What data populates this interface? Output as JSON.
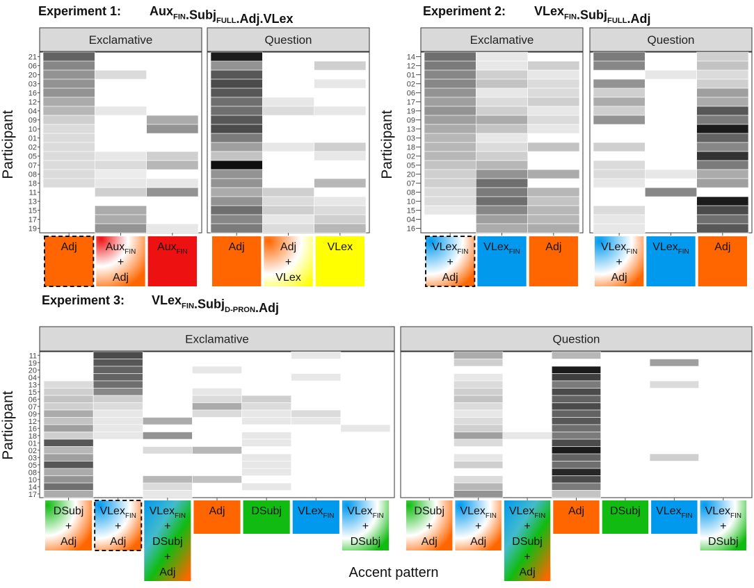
{
  "figure": {
    "y_axis_label": "Participant",
    "x_axis_label": "Accent pattern"
  },
  "colors": {
    "adj": "#ff6600",
    "aux": "#ee1111",
    "vlex": "#ffff00",
    "vlexfin": "#0099ee",
    "dsubj": "#11bb11",
    "strip_bg": "#d9d9d9",
    "white": "#ffffff"
  },
  "chart_data": [
    {
      "type": "heatmap",
      "title": {
        "prefix": "Experiment 1:",
        "formula": "Aux_FIN.Subj_FULL.Adj.VLex"
      },
      "ylabel": "Participant",
      "xlabel": "Accent pattern",
      "value_scale": "proportion 0–1 (white = 0, black = 1)",
      "participants": [
        "21",
        "06",
        "20",
        "03",
        "16",
        "12",
        "04",
        "09",
        "10",
        "01",
        "02",
        "05",
        "07",
        "08",
        "18",
        "11",
        "13",
        "15",
        "17",
        "19"
      ],
      "panels": [
        {
          "facet": "Exclamative",
          "patterns": [
            {
              "text": "Adj",
              "boxed": true,
              "fill": "adj",
              "values": [
                0.65,
                0.5,
                0.45,
                0.45,
                0.45,
                0.35,
                0.3,
                0.2,
                0.15,
                0.15,
                0.15,
                0.15,
                0.15,
                0.15,
                0.15,
                0,
                0,
                0,
                0,
                0
              ]
            },
            {
              "text": "Aux_FIN + Adj",
              "fill": "aux-adj",
              "values": [
                0,
                0,
                0.15,
                0,
                0,
                0,
                0.1,
                0,
                0,
                0,
                0,
                0.1,
                0.15,
                0.08,
                0.1,
                0.2,
                0,
                0.35,
                0.35,
                0.45
              ]
            },
            {
              "text": "Aux_FIN",
              "fill": "aux",
              "values": [
                0,
                0,
                0,
                0,
                0,
                0,
                0,
                0.35,
                0.45,
                0,
                0,
                0.2,
                0.3,
                0,
                0.1,
                0.45,
                0,
                0,
                0,
                0.1
              ]
            }
          ]
        },
        {
          "facet": "Question",
          "patterns": [
            {
              "text": "Adj",
              "fill": "adj",
              "values": [
                0.95,
                0.45,
                0.7,
                0.75,
                0.7,
                0.6,
                0.6,
                0.7,
                0.75,
                0.55,
                0.4,
                0.25,
                1.0,
                0.45,
                0.45,
                0.35,
                0.45,
                0.6,
                0.5,
                0.55
              ]
            },
            {
              "text": "Adj + VLex",
              "fill": "adj-vlex",
              "values": [
                0,
                0,
                0,
                0,
                0,
                0.1,
                0.15,
                0,
                0,
                0,
                0.1,
                0,
                0,
                0,
                0,
                0.2,
                0.15,
                0.2,
                0.1,
                0.15
              ]
            },
            {
              "text": "VLex",
              "fill": "vlex",
              "values": [
                0,
                0.2,
                0,
                0.1,
                0,
                0,
                0.1,
                0,
                0,
                0,
                0.2,
                0.1,
                0,
                0,
                0.3,
                0,
                0.1,
                0.15,
                0.2,
                0.3
              ]
            }
          ]
        }
      ]
    },
    {
      "type": "heatmap",
      "title": {
        "prefix": "Experiment 2:",
        "formula": "VLex_FIN.Subj_FULL.Adj"
      },
      "ylabel": "Participant",
      "xlabel": "Accent pattern",
      "value_scale": "proportion 0–1 (white = 0, black = 1)",
      "participants": [
        "14",
        "12",
        "01",
        "02",
        "06",
        "17",
        "19",
        "09",
        "13",
        "03",
        "18",
        "02",
        "05",
        "20",
        "07",
        "08",
        "10",
        "15",
        "04",
        "16"
      ],
      "panels": [
        {
          "facet": "Exclamative",
          "patterns": [
            {
              "text": "VLex_FIN + Adj",
              "boxed": true,
              "fill": "vlexfin-adj",
              "values": [
                0.6,
                0.55,
                0.5,
                0.5,
                0.45,
                0.4,
                0.45,
                0.4,
                0.35,
                0.3,
                0.3,
                0.3,
                0.25,
                0.2,
                0.2,
                0.15,
                0.15,
                0.1,
                0,
                0
              ]
            },
            {
              "text": "VLex_FIN",
              "fill": "vlexfin",
              "values": [
                0.1,
                0.1,
                0.2,
                0.25,
                0.1,
                0.15,
                0.2,
                0.35,
                0.25,
                0.1,
                0.15,
                0.2,
                0.3,
                0.45,
                0.6,
                0.55,
                0.6,
                0.5,
                0.4,
                0.35
              ]
            },
            {
              "text": "Adj",
              "fill": "adj",
              "values": [
                0,
                0.2,
                0.1,
                0.15,
                0.15,
                0.2,
                0.1,
                0.15,
                0.1,
                0,
                0.25,
                0,
                0,
                0.35,
                0,
                0.3,
                0.25,
                0.3,
                0.3,
                0.35
              ]
            }
          ]
        },
        {
          "facet": "Question",
          "patterns": [
            {
              "text": "VLex_FIN + Adj",
              "fill": "vlexfin-adj",
              "values": [
                0.55,
                0.5,
                0,
                0.45,
                0.2,
                0.35,
                0.2,
                0.45,
                0,
                0,
                0.2,
                0,
                0.15,
                0.15,
                0.1,
                0,
                0,
                0.15,
                0.1,
                0.1
              ]
            },
            {
              "text": "VLex_FIN",
              "fill": "vlexfin",
              "values": [
                0,
                0,
                0.1,
                0,
                0,
                0,
                0,
                0,
                0,
                0,
                0,
                0,
                0,
                0.1,
                0,
                0.5,
                0,
                0,
                0,
                0
              ]
            },
            {
              "text": "Adj",
              "fill": "adj",
              "values": [
                0.2,
                0.25,
                0.15,
                0.2,
                0.4,
                0.35,
                0.7,
                0.55,
                0.95,
                0.65,
                0.5,
                0.85,
                0.55,
                0.35,
                0.4,
                0,
                0.95,
                0.75,
                0.6,
                0.7
              ]
            }
          ]
        }
      ]
    },
    {
      "type": "heatmap",
      "title": {
        "prefix": "Experiment 3:",
        "formula": "VLex_FIN.Subj_D-PRON.Adj"
      },
      "ylabel": "Participant",
      "xlabel": "Accent pattern",
      "value_scale": "proportion 0–1 (white = 0, black = 1)",
      "participants": [
        "11",
        "19",
        "20",
        "04",
        "13",
        "15",
        "06",
        "07",
        "09",
        "12",
        "16",
        "18",
        "01",
        "02",
        "03",
        "05",
        "08",
        "10",
        "14",
        "17"
      ],
      "panels": [
        {
          "facet": "Exclamative",
          "patterns": [
            {
              "text": "DSubj + Adj",
              "fill": "dsubj-adj",
              "values": [
                0,
                0,
                0,
                0,
                0.15,
                0.2,
                0.25,
                0.2,
                0.35,
                0.25,
                0.4,
                0.2,
                0.7,
                0.3,
                0.4,
                0.7,
                0.35,
                0.45,
                0.6,
                0.35
              ]
            },
            {
              "text": "VLex_FIN + Adj",
              "boxed": true,
              "fill": "vlexfin-adj",
              "values": [
                0.75,
                0.7,
                0.65,
                0.65,
                0.6,
                0.5,
                0.2,
                0.15,
                0.1,
                0.1,
                0.1,
                0.1,
                0,
                0,
                0,
                0,
                0,
                0,
                0,
                0
              ]
            },
            {
              "text": "VLex_FIN + DSubj + Adj",
              "fill": "vlexfin-dsubj-adj",
              "values": [
                0,
                0,
                0,
                0,
                0,
                0,
                0,
                0,
                0,
                0.35,
                0,
                0.45,
                0,
                0.15,
                0,
                0,
                0,
                0.3,
                0.15,
                0.1
              ]
            },
            {
              "text": "Adj",
              "fill": "adj",
              "values": [
                0,
                0,
                0.1,
                0,
                0,
                0.1,
                0.15,
                0.35,
                0.15,
                0,
                0,
                0,
                0,
                0.3,
                0,
                0,
                0,
                0.25,
                0,
                0
              ]
            },
            {
              "text": "DSubj",
              "fill": "dsubj",
              "values": [
                0,
                0,
                0,
                0,
                0,
                0,
                0.2,
                0.15,
                0.1,
                0.1,
                0,
                0.1,
                0.1,
                0,
                0.1,
                0.1,
                0.1,
                0,
                0.1,
                0
              ]
            },
            {
              "text": "VLex_FIN",
              "fill": "vlexfin",
              "values": [
                0.1,
                0,
                0,
                0.1,
                0,
                0,
                0,
                0,
                0.15,
                0.1,
                0,
                0,
                0,
                0,
                0,
                0,
                0,
                0,
                0,
                0
              ]
            },
            {
              "text": "VLex_FIN + DSubj",
              "fill": "vlexfin-dsubj",
              "values": [
                0,
                0,
                0,
                0,
                0,
                0,
                0,
                0,
                0,
                0,
                0.1,
                0,
                0,
                0,
                0,
                0,
                0,
                0,
                0,
                0
              ]
            }
          ]
        },
        {
          "facet": "Question",
          "patterns": [
            {
              "text": "DSubj + Adj",
              "fill": "dsubj-adj",
              "values": [
                0,
                0,
                0,
                0,
                0,
                0,
                0,
                0,
                0,
                0,
                0,
                0,
                0,
                0,
                0,
                0,
                0,
                0,
                0,
                0
              ]
            },
            {
              "text": "VLex_FIN + Adj",
              "fill": "vlexfin-adj",
              "values": [
                0.35,
                0.2,
                0,
                0.1,
                0.15,
                0.2,
                0.25,
                0.15,
                0.1,
                0.15,
                0.2,
                0.4,
                0.15,
                0,
                0.1,
                0.2,
                0,
                0.15,
                0.3,
                0.45
              ]
            },
            {
              "text": "VLex_FIN + DSubj + Adj",
              "fill": "vlexfin-dsubj-adj",
              "values": [
                0,
                0,
                0,
                0,
                0,
                0,
                0,
                0,
                0,
                0,
                0,
                0.1,
                0,
                0,
                0,
                0,
                0,
                0,
                0,
                0
              ]
            },
            {
              "text": "Adj",
              "fill": "adj",
              "values": [
                0.3,
                0,
                0.95,
                0.8,
                0.55,
                0.75,
                0.65,
                0.75,
                0.65,
                0.7,
                0.6,
                0.55,
                0.75,
                0.95,
                0.65,
                0.6,
                0.9,
                0.75,
                0.55,
                0.25
              ]
            },
            {
              "text": "DSubj",
              "fill": "dsubj",
              "values": [
                0,
                0,
                0,
                0,
                0,
                0,
                0,
                0,
                0,
                0,
                0,
                0,
                0,
                0,
                0,
                0,
                0,
                0,
                0,
                0
              ]
            },
            {
              "text": "VLex_FIN",
              "fill": "vlexfin",
              "values": [
                0,
                0.4,
                0,
                0,
                0.15,
                0,
                0,
                0,
                0,
                0,
                0,
                0,
                0,
                0,
                0.2,
                0,
                0,
                0,
                0,
                0
              ]
            },
            {
              "text": "VLex_FIN + DSubj",
              "fill": "vlexfin-dsubj",
              "values": [
                0,
                0,
                0,
                0,
                0,
                0,
                0,
                0,
                0,
                0,
                0,
                0,
                0,
                0,
                0,
                0,
                0,
                0,
                0,
                0
              ]
            }
          ]
        }
      ]
    }
  ]
}
